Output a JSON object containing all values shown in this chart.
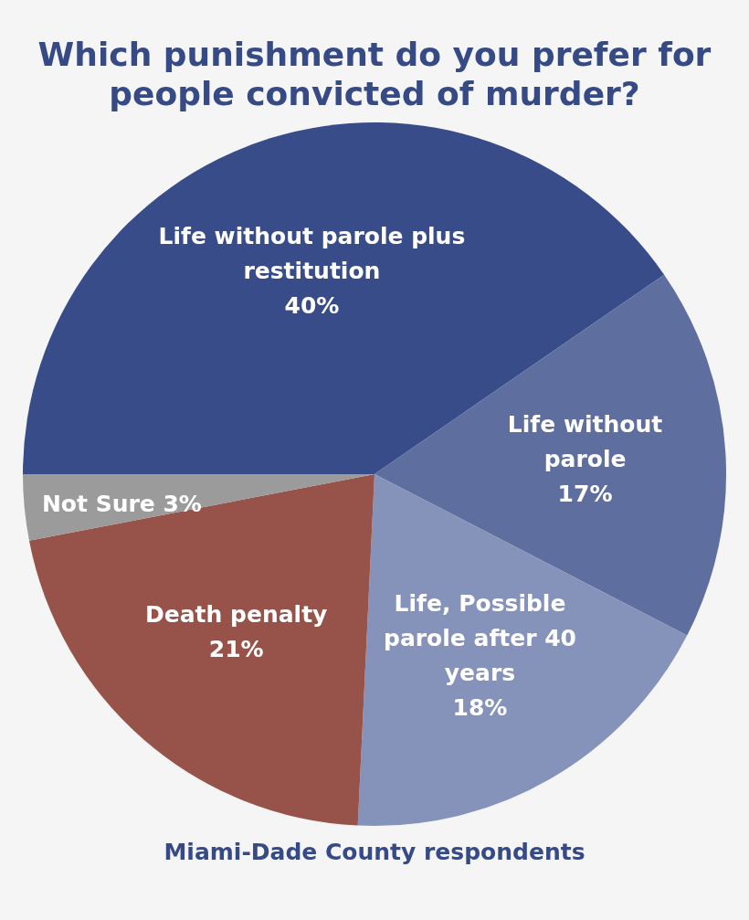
{
  "chart_data": {
    "type": "pie",
    "title": "Which punishment do you prefer for people convicted of murder?",
    "categories": [
      "Life without parole plus restitution",
      "Life without parole",
      "Life, Possible parole after 40 years",
      "Death penalty",
      "Not Sure"
    ],
    "values": [
      40,
      17,
      18,
      21,
      3
    ],
    "colors": [
      "#374c88",
      "#5e6e9f",
      "#8593bb",
      "#97524a",
      "#9b9b9b"
    ],
    "value_labels": [
      "40%",
      "17%",
      "18%",
      "21%",
      "3%"
    ],
    "legend": false,
    "annotations": [
      "Miami-Dade County respondents"
    ]
  }
}
